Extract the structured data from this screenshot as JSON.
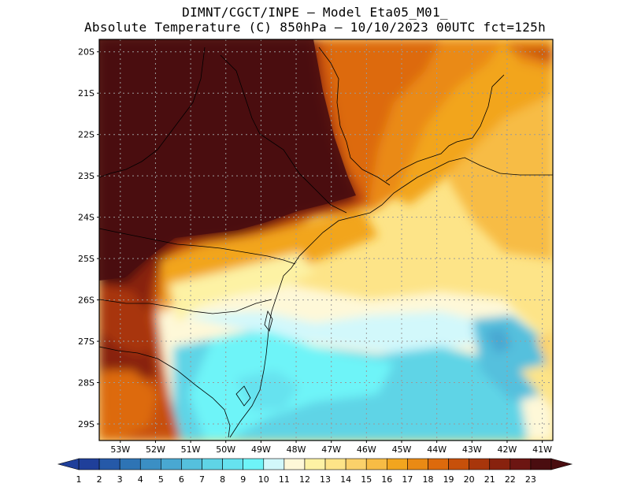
{
  "title": {
    "line1": "DIMNT/CGCT/INPE —  Model Eta05_M01_",
    "line2": "Absolute Temperature (C) 850hPa —  10/10/2023 00UTC fct=125h"
  },
  "map": {
    "lat_labels": [
      "20S",
      "21S",
      "22S",
      "23S",
      "24S",
      "25S",
      "26S",
      "27S",
      "28S",
      "29S"
    ],
    "lon_labels": [
      "53W",
      "52W",
      "51W",
      "50W",
      "49W",
      "48W",
      "47W",
      "46W",
      "45W",
      "44W",
      "43W",
      "42W",
      "41W"
    ],
    "lat_range": [
      -29.4,
      -19.7
    ],
    "lon_range": [
      -53.6,
      -40.7
    ]
  },
  "colorbar": {
    "labels": [
      "1",
      "2",
      "3",
      "4",
      "5",
      "6",
      "7",
      "8",
      "9",
      "10",
      "11",
      "12",
      "13",
      "14",
      "15",
      "16",
      "17",
      "18",
      "19",
      "20",
      "21",
      "22",
      "23"
    ],
    "colors": [
      "#1f3f9a",
      "#2559a8",
      "#2e74b5",
      "#3b8fc4",
      "#49a8d2",
      "#55c0dd",
      "#5fd4e6",
      "#66e2ef",
      "#6ef4f8",
      "#d2f8fb",
      "#fef8d8",
      "#fdf2a4",
      "#fde488",
      "#fbd16a",
      "#f7bc45",
      "#f2a51e",
      "#ea8a14",
      "#dd6a0c",
      "#c7500a",
      "#a8360b",
      "#88220e",
      "#6c1512",
      "#4a0d10"
    ]
  },
  "colors": {
    "land_hot": "#4a0d10",
    "ocean_cool": "#66e2ef",
    "frame": "#000000"
  }
}
